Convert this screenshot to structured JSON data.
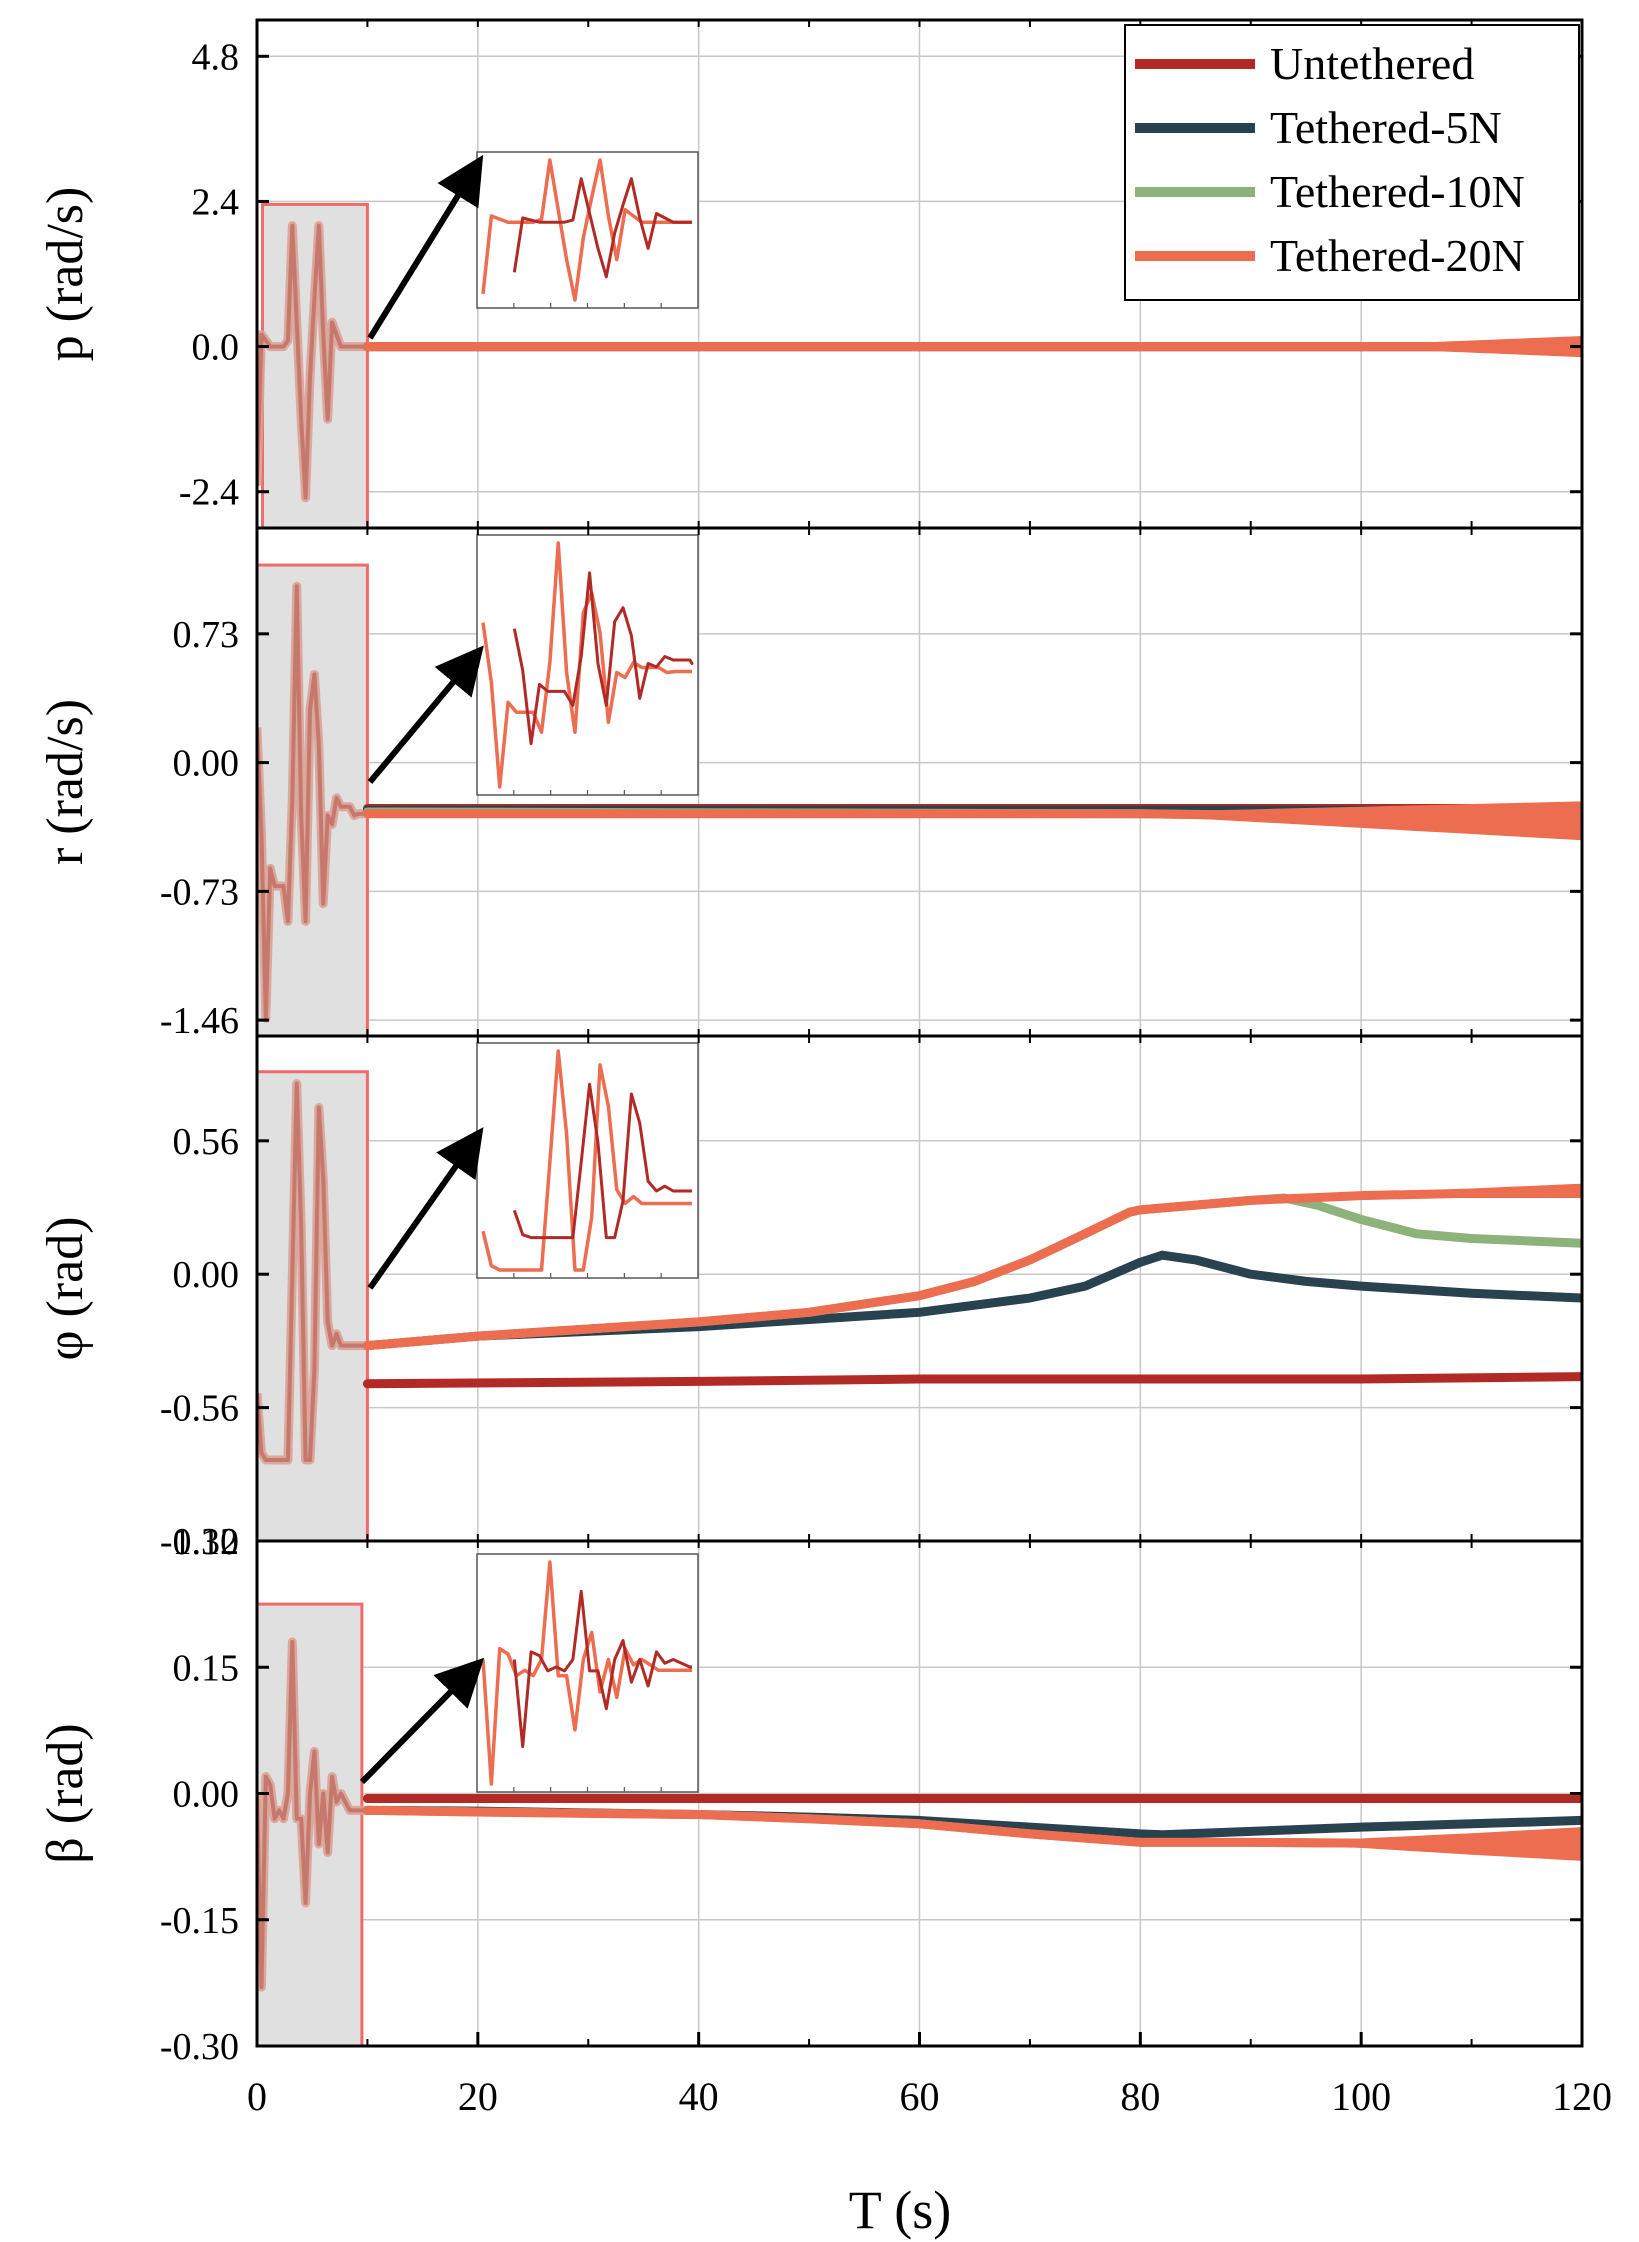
{
  "chart_data": {
    "type": "line",
    "x_range": [
      0,
      120
    ],
    "xlabel": "T (s)",
    "x_ticks": [
      "0",
      "20",
      "40",
      "60",
      "80",
      "100",
      "120"
    ],
    "grid": true,
    "legend_placement": "top-right",
    "series_styles": [
      {
        "name": "Untethered",
        "color": "#B22A25"
      },
      {
        "name": "Tethered-5N",
        "color": "#28424F"
      },
      {
        "name": "Tethered-10N",
        "color": "#8DB37B"
      },
      {
        "name": "Tethered-20N",
        "color": "#EC6D50"
      }
    ],
    "colors": {
      "highlight_fill": "#E0E0E0",
      "highlight_border": "#F06A6A",
      "grid": "#C8C8C8",
      "arrow": "#000000"
    },
    "panels": [
      {
        "ylabel": "p (rad/s)",
        "ylim": [
          -3.0,
          5.4
        ],
        "y_ticks": [
          {
            "v": 4.8,
            "t": "4.8"
          },
          {
            "v": 2.4,
            "t": "2.4"
          },
          {
            "v": 0.0,
            "t": "0.0"
          },
          {
            "v": -2.4,
            "t": "-2.4"
          }
        ],
        "highlight_window": {
          "x": [
            0.5,
            10
          ],
          "y": [
            -3.0,
            2.35
          ]
        },
        "series": [
          {
            "name": "Untethered",
            "x": [
              10,
              120
            ],
            "y": [
              0.0,
              0.0
            ]
          },
          {
            "name": "Tethered-5N",
            "x": [
              10,
              120
            ],
            "y": [
              0.0,
              0.0
            ]
          },
          {
            "name": "Tethered-10N",
            "x": [
              10,
              120
            ],
            "y": [
              0.0,
              0.0
            ]
          },
          {
            "name": "Tethered-20N",
            "x": [
              10,
              100,
              120
            ],
            "y": [
              0.0,
              0.0,
              0.0
            ],
            "band": {
              "x": [
                100,
                120
              ],
              "width": [
                0.05,
                0.35
              ]
            }
          }
        ],
        "transient": {
          "x": [
            0,
            0.4,
            0.8,
            1.2,
            1.6,
            2,
            2.4,
            2.8,
            3.2,
            3.6,
            4,
            4.4,
            4.8,
            5.2,
            5.6,
            6,
            6.4,
            6.8,
            7.2,
            7.6,
            8,
            8.4,
            8.8,
            9.2,
            9.6,
            10
          ],
          "y": [
            -2.3,
            0.2,
            0.1,
            0.0,
            0.0,
            0.0,
            0.0,
            0.1,
            2.0,
            0.4,
            -1.2,
            -2.5,
            -0.5,
            0.8,
            2.0,
            0.2,
            -1.2,
            0.4,
            0.2,
            0.0,
            0.0,
            0.0,
            0.0,
            0.0,
            0.0,
            0.0
          ]
        }
      },
      {
        "ylabel": "r (rad/s)",
        "ylim": [
          -1.55,
          1.33
        ],
        "y_ticks": [
          {
            "v": 0.73,
            "t": "0.73"
          },
          {
            "v": 0.0,
            "t": "0.00"
          },
          {
            "v": -0.73,
            "t": "-0.73"
          },
          {
            "v": -1.46,
            "t": "-1.46"
          }
        ],
        "highlight_window": {
          "x": [
            0,
            10
          ],
          "y": [
            -1.55,
            1.12
          ]
        },
        "series": [
          {
            "name": "Untethered",
            "x": [
              10,
              120
            ],
            "y": [
              -0.26,
              -0.26
            ]
          },
          {
            "name": "Tethered-5N",
            "x": [
              10,
              80,
              120
            ],
            "y": [
              -0.27,
              -0.27,
              -0.27
            ]
          },
          {
            "name": "Tethered-10N",
            "x": [
              10,
              80,
              120
            ],
            "y": [
              -0.28,
              -0.29,
              -0.32
            ]
          },
          {
            "name": "Tethered-20N",
            "x": [
              10,
              80,
              120
            ],
            "y": [
              -0.29,
              -0.29,
              -0.33
            ],
            "band": {
              "x": [
                80,
                120
              ],
              "width": [
                0.02,
                0.22
              ]
            }
          }
        ],
        "transient": {
          "x": [
            0,
            0.4,
            0.8,
            1.2,
            1.6,
            2,
            2.4,
            2.8,
            3.2,
            3.6,
            4,
            4.4,
            4.8,
            5.2,
            5.6,
            6,
            6.4,
            6.8,
            7.2,
            7.6,
            8,
            8.4,
            8.8,
            9.2,
            9.6,
            10
          ],
          "y": [
            0.2,
            -0.4,
            -1.45,
            -0.6,
            -0.7,
            -0.7,
            -0.7,
            -0.9,
            -0.2,
            1.0,
            -0.3,
            -0.9,
            0.3,
            0.5,
            0.1,
            -0.8,
            -0.3,
            -0.35,
            -0.2,
            -0.25,
            -0.25,
            -0.25,
            -0.3,
            -0.29,
            -0.29,
            -0.29
          ]
        }
      },
      {
        "ylabel": "φ (rad)",
        "ylim": [
          -1.12,
          1.0
        ],
        "y_ticks": [
          {
            "v": 0.56,
            "t": "0.56"
          },
          {
            "v": 0.0,
            "t": "0.00"
          },
          {
            "v": -0.56,
            "t": "-0.56"
          },
          {
            "v": -1.12,
            "t": "-1.12"
          }
        ],
        "highlight_window": {
          "x": [
            0,
            10
          ],
          "y": [
            -1.12,
            0.85
          ]
        },
        "series": [
          {
            "name": "Untethered",
            "x": [
              10,
              40,
              60,
              80,
              100,
              120
            ],
            "y": [
              -0.46,
              -0.45,
              -0.44,
              -0.44,
              -0.44,
              -0.43
            ]
          },
          {
            "name": "Tethered-5N",
            "x": [
              10,
              20,
              30,
              40,
              50,
              60,
              70,
              75,
              80,
              82,
              85,
              90,
              95,
              100,
              110,
              120
            ],
            "y": [
              -0.3,
              -0.26,
              -0.24,
              -0.22,
              -0.19,
              -0.16,
              -0.1,
              -0.05,
              0.05,
              0.08,
              0.06,
              0.0,
              -0.03,
              -0.05,
              -0.08,
              -0.1
            ]
          },
          {
            "name": "Tethered-10N",
            "x": [
              10,
              20,
              30,
              40,
              50,
              60,
              65,
              70,
              75,
              79,
              80,
              85,
              90,
              93,
              96,
              100,
              105,
              110,
              115,
              120
            ],
            "y": [
              -0.3,
              -0.26,
              -0.23,
              -0.2,
              -0.16,
              -0.09,
              -0.03,
              0.06,
              0.17,
              0.26,
              0.27,
              0.29,
              0.31,
              0.32,
              0.29,
              0.23,
              0.17,
              0.15,
              0.14,
              0.13
            ]
          },
          {
            "name": "Tethered-20N",
            "x": [
              10,
              20,
              30,
              40,
              50,
              60,
              65,
              70,
              75,
              79,
              80,
              85,
              90,
              95,
              100,
              110,
              120
            ],
            "y": [
              -0.3,
              -0.26,
              -0.23,
              -0.2,
              -0.16,
              -0.09,
              -0.03,
              0.06,
              0.17,
              0.26,
              0.27,
              0.29,
              0.31,
              0.32,
              0.33,
              0.34,
              0.35
            ],
            "band": {
              "x": [
                100,
                120
              ],
              "width": [
                0.02,
                0.06
              ]
            }
          }
        ],
        "transient": {
          "x": [
            0,
            0.4,
            0.8,
            1.2,
            1.6,
            2,
            2.4,
            2.8,
            3.2,
            3.6,
            4,
            4.4,
            4.8,
            5.2,
            5.6,
            6,
            6.4,
            6.8,
            7.2,
            7.6,
            8,
            8.4,
            8.8,
            9.2,
            9.6,
            10
          ],
          "y": [
            -0.5,
            -0.75,
            -0.78,
            -0.78,
            -0.78,
            -0.78,
            -0.78,
            -0.78,
            0.0,
            0.8,
            0.2,
            -0.78,
            -0.78,
            -0.4,
            0.7,
            0.4,
            -0.2,
            -0.3,
            -0.25,
            -0.3,
            -0.3,
            -0.3,
            -0.3,
            -0.3,
            -0.3,
            -0.3
          ]
        }
      },
      {
        "ylabel": "β (rad)",
        "ylim": [
          -0.3,
          0.3
        ],
        "y_ticks": [
          {
            "v": 0.3,
            "t": "0.30"
          },
          {
            "v": 0.15,
            "t": "0.15"
          },
          {
            "v": 0.0,
            "t": "0.00"
          },
          {
            "v": -0.15,
            "t": "-0.15"
          },
          {
            "v": -0.3,
            "t": "-0.30"
          }
        ],
        "highlight_window": {
          "x": [
            0,
            9.5
          ],
          "y": [
            -0.3,
            0.225
          ]
        },
        "series": [
          {
            "name": "Untethered",
            "x": [
              10,
              120
            ],
            "y": [
              -0.006,
              -0.006
            ]
          },
          {
            "name": "Tethered-5N",
            "x": [
              10,
              20,
              40,
              50,
              60,
              70,
              80,
              82,
              90,
              100,
              110,
              120
            ],
            "y": [
              -0.02,
              -0.021,
              -0.025,
              -0.028,
              -0.032,
              -0.04,
              -0.048,
              -0.049,
              -0.045,
              -0.04,
              -0.036,
              -0.032
            ]
          },
          {
            "name": "Tethered-10N",
            "x": [
              10,
              20,
              40,
              50,
              60,
              70,
              80,
              90,
              100,
              110,
              120
            ],
            "y": [
              -0.02,
              -0.022,
              -0.025,
              -0.03,
              -0.036,
              -0.048,
              -0.058,
              -0.058,
              -0.059,
              -0.06,
              -0.06
            ]
          },
          {
            "name": "Tethered-20N",
            "x": [
              10,
              20,
              40,
              50,
              60,
              70,
              80,
              90,
              100,
              110,
              120
            ],
            "y": [
              -0.02,
              -0.022,
              -0.025,
              -0.03,
              -0.036,
              -0.048,
              -0.058,
              -0.058,
              -0.059,
              -0.06,
              -0.06
            ],
            "band": {
              "x": [
                95,
                120
              ],
              "width": [
                0.004,
                0.04
              ]
            }
          }
        ],
        "transient": {
          "x": [
            0,
            0.4,
            0.8,
            1.2,
            1.6,
            2,
            2.4,
            2.8,
            3.2,
            3.6,
            4,
            4.4,
            4.8,
            5.2,
            5.6,
            6,
            6.4,
            6.8,
            7.2,
            7.6,
            8,
            8.4,
            8.8,
            9.2,
            9.6,
            10
          ],
          "y": [
            0.0,
            -0.23,
            0.02,
            0.01,
            -0.03,
            -0.02,
            -0.03,
            0.0,
            0.18,
            -0.03,
            -0.03,
            -0.13,
            0.0,
            0.05,
            -0.06,
            0.0,
            -0.07,
            0.02,
            -0.01,
            0.0,
            -0.01,
            -0.02,
            -0.02,
            -0.02,
            -0.02,
            -0.02
          ]
        }
      }
    ]
  }
}
